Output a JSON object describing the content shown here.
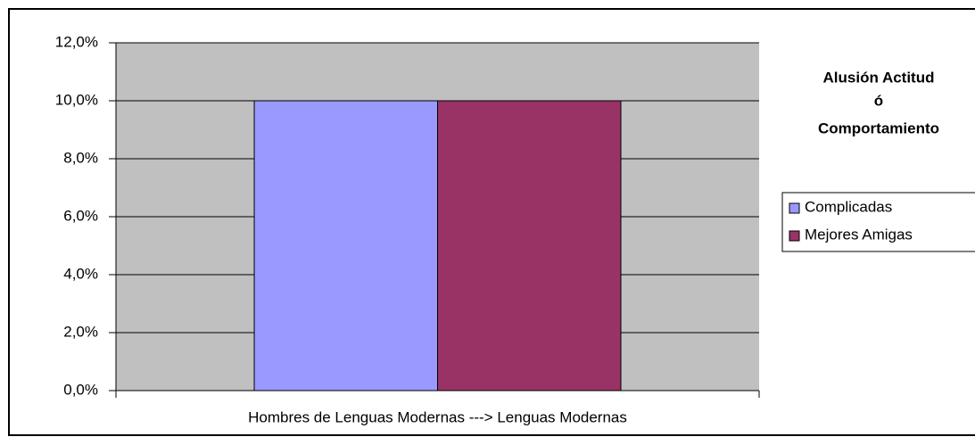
{
  "chart_data": {
    "type": "bar",
    "categories": [
      "Hombres de Lenguas Modernas ---> Lenguas Modernas"
    ],
    "series": [
      {
        "name": "Complicadas",
        "color": "#9999ff",
        "values": [
          10
        ]
      },
      {
        "name": "Mejores Amigas",
        "color": "#993366",
        "values": [
          10
        ]
      }
    ],
    "ylim": [
      0,
      12
    ],
    "yticks": [
      {
        "value": 0,
        "label": "0,0%"
      },
      {
        "value": 2,
        "label": "2,0%"
      },
      {
        "value": 4,
        "label": "4,0%"
      },
      {
        "value": 6,
        "label": "6,0%"
      },
      {
        "value": 8,
        "label": "8,0%"
      },
      {
        "value": 10,
        "label": "10,0%"
      },
      {
        "value": 12,
        "label": "12,0%"
      }
    ],
    "grid": true,
    "legend_title": [
      "Alusión Actitud",
      "ó",
      "Comportamiento"
    ],
    "legend": "right"
  }
}
